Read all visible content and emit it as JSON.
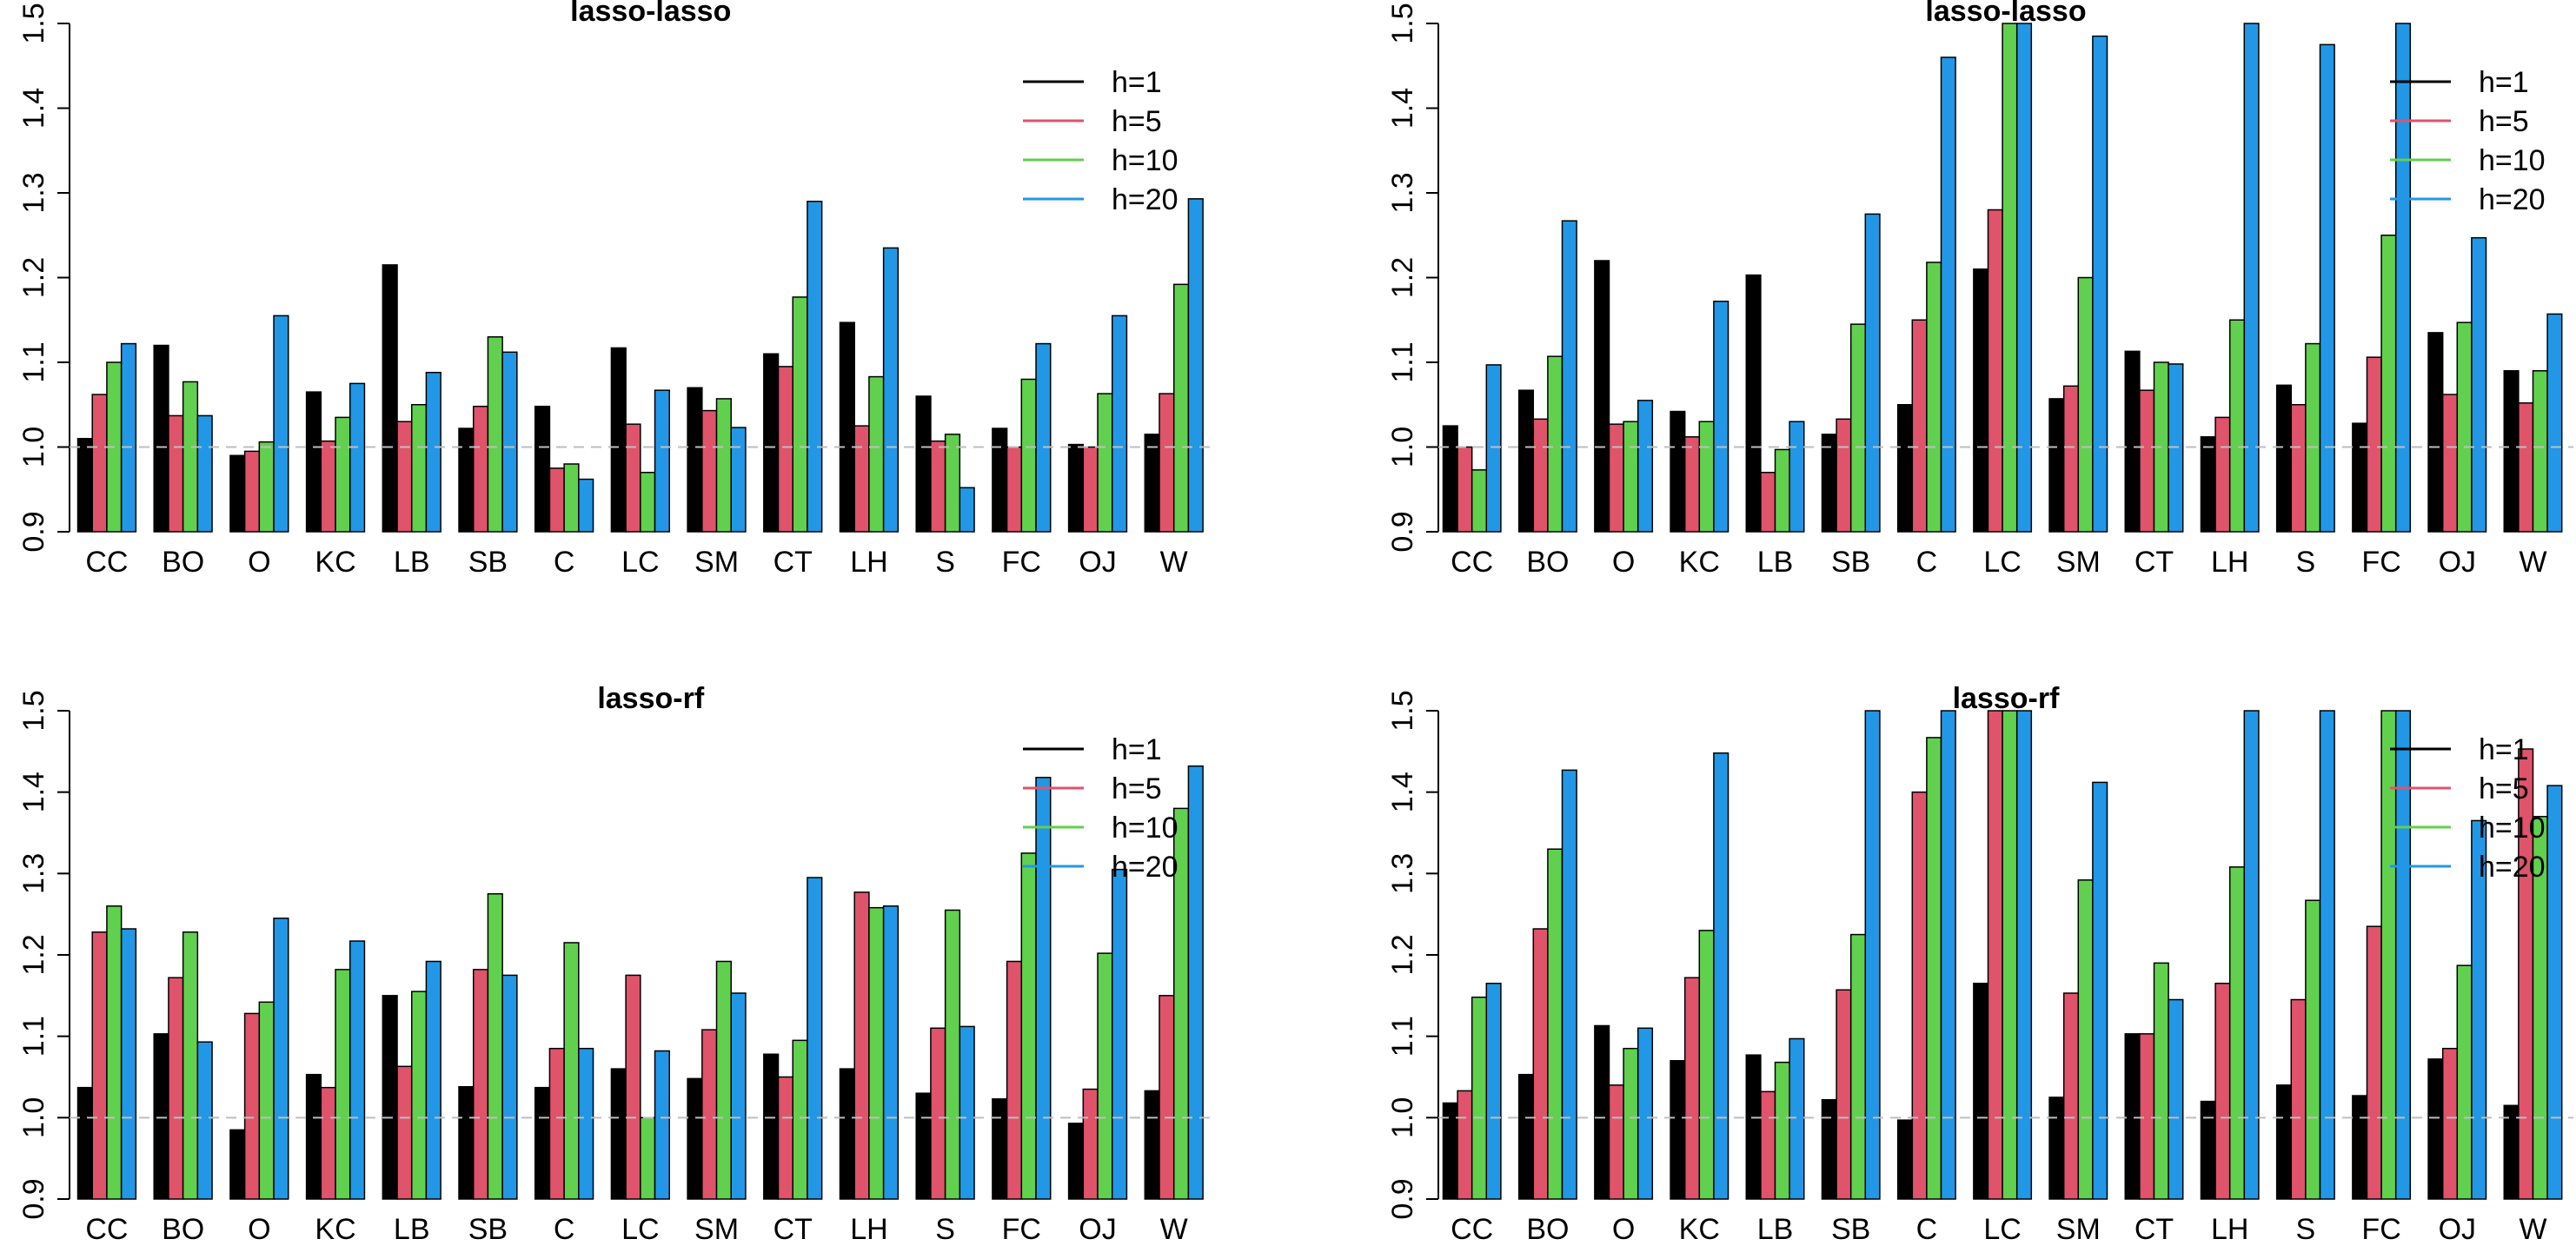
{
  "colors": {
    "h1": "#000000",
    "h5": "#DF536B",
    "h10": "#61D04F",
    "h20": "#2297E6",
    "baseline": "#BEBEBE"
  },
  "chart_data": [
    {
      "type": "bar",
      "title": "lasso-lasso",
      "categories": [
        "CC",
        "BO",
        "O",
        "KC",
        "LB",
        "SB",
        "C",
        "LC",
        "SM",
        "CT",
        "LH",
        "S",
        "FC",
        "OJ",
        "W"
      ],
      "ylim": [
        0.9,
        1.5
      ],
      "yticks": [
        "0.9",
        "1.0",
        "1.1",
        "1.2",
        "1.3",
        "1.4",
        "1.5"
      ],
      "reference_line": 1.0,
      "legend": [
        "h=1",
        "h=5",
        "h=10",
        "h=20"
      ],
      "series": [
        {
          "name": "h=1",
          "values": [
            1.01,
            1.12,
            0.99,
            1.065,
            1.215,
            1.022,
            1.048,
            1.117,
            1.07,
            1.11,
            1.147,
            1.06,
            1.022,
            1.003,
            1.015
          ]
        },
        {
          "name": "h=5",
          "values": [
            1.062,
            1.037,
            0.995,
            1.007,
            1.03,
            1.048,
            0.975,
            1.027,
            1.043,
            1.095,
            1.025,
            1.007,
            1.0,
            1.0,
            1.063
          ]
        },
        {
          "name": "h=10",
          "values": [
            1.1,
            1.077,
            1.006,
            1.035,
            1.05,
            1.13,
            0.98,
            0.97,
            1.057,
            1.177,
            1.083,
            1.015,
            1.08,
            1.063,
            1.192
          ]
        },
        {
          "name": "h=20",
          "values": [
            1.122,
            1.037,
            1.155,
            1.075,
            1.088,
            1.112,
            0.962,
            1.067,
            1.023,
            1.29,
            1.235,
            0.952,
            1.122,
            1.155,
            1.293
          ]
        }
      ]
    },
    {
      "type": "bar",
      "title": "lasso-lasso",
      "categories": [
        "CC",
        "BO",
        "O",
        "KC",
        "LB",
        "SB",
        "C",
        "LC",
        "SM",
        "CT",
        "LH",
        "S",
        "FC",
        "OJ",
        "W"
      ],
      "ylim": [
        0.9,
        1.5
      ],
      "yticks": [
        "0.9",
        "1.0",
        "1.1",
        "1.2",
        "1.3",
        "1.4",
        "1.5"
      ],
      "reference_line": 1.0,
      "legend": [
        "h=1",
        "h=5",
        "h=10",
        "h=20"
      ],
      "series": [
        {
          "name": "h=1",
          "values": [
            1.025,
            1.067,
            1.22,
            1.042,
            1.203,
            1.015,
            1.05,
            1.21,
            1.057,
            1.113,
            1.012,
            1.073,
            1.028,
            1.135,
            1.09
          ]
        },
        {
          "name": "h=5",
          "values": [
            1.0,
            1.033,
            1.027,
            1.012,
            0.97,
            1.033,
            1.15,
            1.28,
            1.072,
            1.067,
            1.035,
            1.05,
            1.106,
            1.062,
            1.052
          ]
        },
        {
          "name": "h=10",
          "values": [
            0.973,
            1.107,
            1.03,
            1.03,
            0.997,
            1.145,
            1.218,
            1.5,
            1.2,
            1.1,
            1.15,
            1.122,
            1.25,
            1.147,
            1.09
          ]
        },
        {
          "name": "h=20",
          "values": [
            1.097,
            1.267,
            1.055,
            1.172,
            1.03,
            1.275,
            1.46,
            1.5,
            1.485,
            1.098,
            1.5,
            1.475,
            1.5,
            1.247,
            1.157
          ]
        }
      ]
    },
    {
      "type": "bar",
      "title": "lasso-rf",
      "categories": [
        "CC",
        "BO",
        "O",
        "KC",
        "LB",
        "SB",
        "C",
        "LC",
        "SM",
        "CT",
        "LH",
        "S",
        "FC",
        "OJ",
        "W"
      ],
      "ylim": [
        0.9,
        1.5
      ],
      "yticks": [
        "0.9",
        "1.0",
        "1.1",
        "1.2",
        "1.3",
        "1.4",
        "1.5"
      ],
      "reference_line": 1.0,
      "legend": [
        "h=1",
        "h=5",
        "h=10",
        "h=20"
      ],
      "series": [
        {
          "name": "h=1",
          "values": [
            1.037,
            1.103,
            0.985,
            1.053,
            1.15,
            1.038,
            1.037,
            1.06,
            1.048,
            1.078,
            1.06,
            1.03,
            1.023,
            0.993,
            1.033
          ]
        },
        {
          "name": "h=5",
          "values": [
            1.228,
            1.172,
            1.128,
            1.037,
            1.063,
            1.182,
            1.085,
            1.175,
            1.108,
            1.05,
            1.277,
            1.11,
            1.192,
            1.035,
            1.15
          ]
        },
        {
          "name": "h=10",
          "values": [
            1.26,
            1.228,
            1.142,
            1.182,
            1.155,
            1.275,
            1.215,
            1.0,
            1.192,
            1.095,
            1.258,
            1.255,
            1.325,
            1.202,
            1.38
          ]
        },
        {
          "name": "h=20",
          "values": [
            1.232,
            1.093,
            1.245,
            1.217,
            1.192,
            1.175,
            1.085,
            1.082,
            1.153,
            1.295,
            1.26,
            1.112,
            1.418,
            1.305,
            1.432
          ]
        }
      ]
    },
    {
      "type": "bar",
      "title": "lasso-rf",
      "categories": [
        "CC",
        "BO",
        "O",
        "KC",
        "LB",
        "SB",
        "C",
        "LC",
        "SM",
        "CT",
        "LH",
        "S",
        "FC",
        "OJ",
        "W"
      ],
      "ylim": [
        0.9,
        1.5
      ],
      "yticks": [
        "0.9",
        "1.0",
        "1.1",
        "1.2",
        "1.3",
        "1.4",
        "1.5"
      ],
      "reference_line": 1.0,
      "legend": [
        "h=1",
        "h=5",
        "h=10",
        "h=20"
      ],
      "series": [
        {
          "name": "h=1",
          "values": [
            1.018,
            1.053,
            1.113,
            1.07,
            1.077,
            1.022,
            0.997,
            1.165,
            1.025,
            1.103,
            1.02,
            1.04,
            1.027,
            1.072,
            1.015
          ]
        },
        {
          "name": "h=5",
          "values": [
            1.033,
            1.232,
            1.04,
            1.172,
            1.032,
            1.157,
            1.4,
            1.5,
            1.153,
            1.103,
            1.165,
            1.145,
            1.235,
            1.085,
            1.453
          ]
        },
        {
          "name": "h=10",
          "values": [
            1.148,
            1.33,
            1.085,
            1.23,
            1.068,
            1.225,
            1.467,
            1.5,
            1.292,
            1.19,
            1.308,
            1.267,
            1.5,
            1.187,
            1.37
          ]
        },
        {
          "name": "h=20",
          "values": [
            1.165,
            1.427,
            1.11,
            1.448,
            1.097,
            1.5,
            1.5,
            1.5,
            1.412,
            1.145,
            1.5,
            1.5,
            1.5,
            1.365,
            1.408
          ]
        }
      ]
    }
  ]
}
